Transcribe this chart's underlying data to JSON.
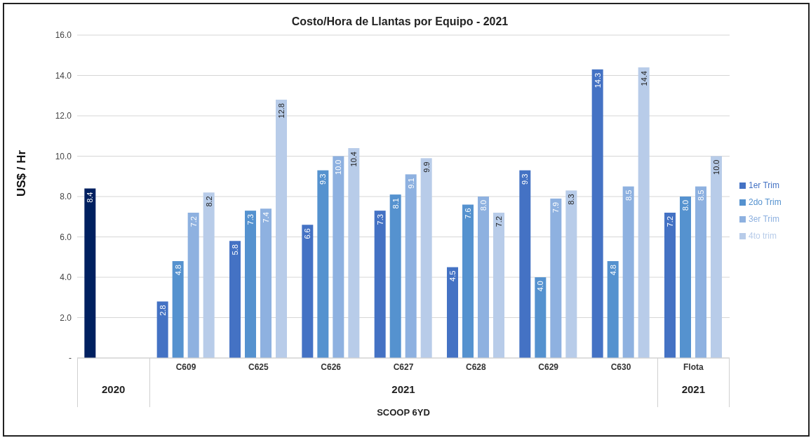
{
  "chart_data": {
    "type": "bar",
    "title": "Costo/Hora de Llantas por Equipo - 2021",
    "xlabel": "SCOOP 6YD",
    "ylabel": "US$ / Hr",
    "categories": [
      null,
      "C609",
      "C625",
      "C626",
      "C627",
      "C628",
      "C629",
      "C630",
      "Flota"
    ],
    "annotations": [
      "2020",
      "2021",
      "2021"
    ],
    "series": [
      {
        "name": "1er Trim",
        "color": "#4472c4",
        "colors": [
          "#002060",
          "#4472c4",
          "#4472c4",
          "#4472c4",
          "#4472c4",
          "#4472c4",
          "#4472c4",
          "#4472c4",
          "#4472c4"
        ],
        "values": [
          8.4,
          2.8,
          5.8,
          6.6,
          7.3,
          4.5,
          9.3,
          14.3,
          7.2
        ],
        "value_labels": [
          "8.4",
          "2.8",
          "5.8",
          "6.6",
          "7.3",
          "4.5",
          "9.3",
          "14.3",
          "7.2"
        ]
      },
      {
        "name": "2do Trim",
        "color": "#5592cf",
        "values": [
          null,
          4.8,
          7.3,
          9.3,
          8.1,
          7.6,
          4.0,
          4.8,
          8.0
        ],
        "value_labels": [
          null,
          "4.8",
          "7.3",
          "9.3",
          "8.1",
          "7.6",
          "4.0",
          "4.8",
          "8.0"
        ]
      },
      {
        "name": "3er Trim",
        "color": "#8eb1e0",
        "values": [
          null,
          7.2,
          7.4,
          10.0,
          9.1,
          8.0,
          7.9,
          8.5,
          8.5
        ],
        "value_labels": [
          null,
          "7.2",
          "7.4",
          "10.0",
          "9.1",
          "8.0",
          "7.9",
          "8.5",
          "8.5"
        ]
      },
      {
        "name": "4to trim",
        "color": "#b8cce9",
        "values": [
          null,
          8.2,
          12.8,
          10.4,
          9.9,
          7.2,
          8.3,
          14.4,
          10.0
        ],
        "value_labels": [
          null,
          "8.2",
          "12.8",
          "10.4",
          "9.9",
          "7.2",
          "8.3",
          "14.4",
          "10.0"
        ]
      }
    ],
    "ylim": [
      0,
      16
    ],
    "yticks": [
      {
        "value": 0,
        "label": "-"
      },
      {
        "value": 2,
        "label": "2.0"
      },
      {
        "value": 4,
        "label": "4.0"
      },
      {
        "value": 6,
        "label": "6.0"
      },
      {
        "value": 8,
        "label": "8.0"
      },
      {
        "value": 10,
        "label": "10.0"
      },
      {
        "value": 12,
        "label": "12.0"
      },
      {
        "value": 14,
        "label": "14.0"
      },
      {
        "value": 16,
        "label": "16.0"
      }
    ],
    "grid": "y",
    "legend": "right"
  }
}
